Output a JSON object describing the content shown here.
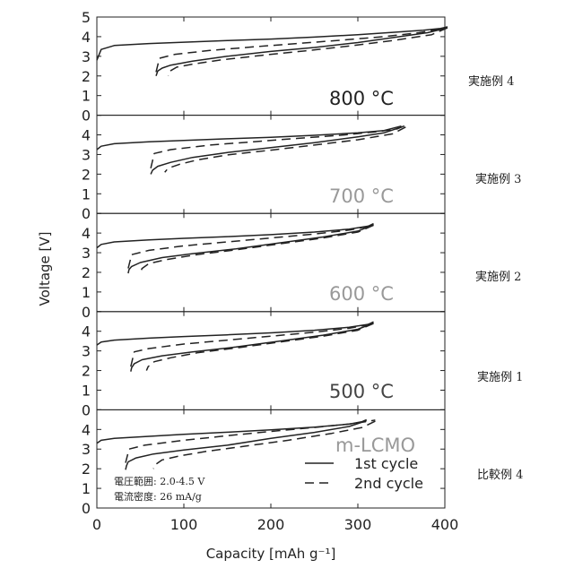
{
  "chart_data": {
    "type": "line",
    "xlabel": "Capacity [mAh g⁻¹]",
    "ylabel": "Voltage [V]",
    "xlim": [
      0,
      400
    ],
    "xticks": [
      "0",
      "100",
      "200",
      "300",
      "400"
    ],
    "ylim": [
      0,
      5
    ],
    "yticks": [
      "0",
      "1",
      "2",
      "3",
      "4",
      "5"
    ],
    "legend": {
      "position": "bottom-right of bottom panel",
      "entries": [
        {
          "label": "1st cycle",
          "style": "solid"
        },
        {
          "label": "2nd cycle",
          "style": "dashed"
        }
      ]
    },
    "conditions": [
      "電圧範囲: 2.0-4.5 V",
      "電流密度: 26 mA/g"
    ],
    "panels": [
      {
        "label": "800 °C",
        "label_color": "#222222",
        "side_label": "実施例 4",
        "series": [
          {
            "name": "1st cycle charge",
            "style": "solid",
            "x": [
              0,
              5,
              20,
              60,
              100,
              150,
              200,
              250,
              300,
              340,
              375,
              395,
              403
            ],
            "y": [
              2.8,
              3.35,
              3.55,
              3.65,
              3.72,
              3.8,
              3.88,
              3.98,
              4.1,
              4.22,
              4.33,
              4.42,
              4.5
            ]
          },
          {
            "name": "1st cycle discharge",
            "style": "solid",
            "x": [
              403,
              380,
              340,
              300,
              250,
              200,
              150,
              110,
              85,
              75,
              70,
              68
            ],
            "y": [
              4.45,
              4.2,
              3.95,
              3.7,
              3.45,
              3.25,
              3.0,
              2.75,
              2.55,
              2.4,
              2.25,
              2.0
            ]
          },
          {
            "name": "2nd cycle charge",
            "style": "dashed",
            "x": [
              68,
              72,
              90,
              130,
              180,
              230,
              280,
              330,
              370,
              395,
              403
            ],
            "y": [
              2.2,
              2.9,
              3.1,
              3.3,
              3.48,
              3.65,
              3.82,
              4.0,
              4.2,
              4.38,
              4.5
            ]
          },
          {
            "name": "2nd cycle discharge",
            "style": "dashed",
            "x": [
              403,
              385,
              340,
              290,
              240,
              190,
              140,
              110,
              92,
              84,
              82
            ],
            "y": [
              4.45,
              4.1,
              3.8,
              3.52,
              3.28,
              3.05,
              2.8,
              2.6,
              2.45,
              2.25,
              2.0
            ]
          }
        ]
      },
      {
        "label": "700 °C",
        "label_color": "#999999",
        "side_label": "実施例 3",
        "series": [
          {
            "name": "1st cycle charge",
            "style": "solid",
            "x": [
              0,
              5,
              20,
              60,
              100,
              150,
              200,
              250,
              300,
              330,
              350
            ],
            "y": [
              3.25,
              3.42,
              3.55,
              3.65,
              3.72,
              3.8,
              3.88,
              3.98,
              4.1,
              4.22,
              4.45
            ]
          },
          {
            "name": "1st cycle discharge",
            "style": "solid",
            "x": [
              350,
              330,
              300,
              250,
              200,
              150,
              110,
              85,
              70,
              64,
              62
            ],
            "y": [
              4.4,
              4.1,
              3.9,
              3.6,
              3.35,
              3.1,
              2.85,
              2.6,
              2.4,
              2.2,
              2.0
            ]
          },
          {
            "name": "2nd cycle charge",
            "style": "dashed",
            "x": [
              62,
              66,
              85,
              130,
              180,
              230,
              280,
              320,
              345,
              355
            ],
            "y": [
              2.3,
              3.05,
              3.25,
              3.48,
              3.65,
              3.82,
              3.98,
              4.15,
              4.3,
              4.48
            ]
          },
          {
            "name": "2nd cycle discharge",
            "style": "dashed",
            "x": [
              355,
              340,
              300,
              250,
              200,
              150,
              115,
              95,
              82,
              78
            ],
            "y": [
              4.4,
              4.05,
              3.75,
              3.48,
              3.22,
              2.98,
              2.72,
              2.5,
              2.3,
              2.1
            ]
          }
        ]
      },
      {
        "label": "600 °C",
        "label_color": "#999999",
        "side_label": "実施例 2",
        "series": [
          {
            "name": "1st cycle charge",
            "style": "solid",
            "x": [
              0,
              5,
              20,
              60,
              100,
              150,
              200,
              250,
              290,
              312,
              318
            ],
            "y": [
              3.25,
              3.42,
              3.55,
              3.65,
              3.73,
              3.82,
              3.92,
              4.05,
              4.2,
              4.35,
              4.48
            ]
          },
          {
            "name": "1st cycle discharge",
            "style": "solid",
            "x": [
              318,
              300,
              260,
              210,
              160,
              110,
              75,
              50,
              40,
              37,
              36
            ],
            "y": [
              4.42,
              4.1,
              3.8,
              3.5,
              3.2,
              2.95,
              2.75,
              2.5,
              2.3,
              2.15,
              1.95
            ]
          },
          {
            "name": "2nd cycle charge",
            "style": "dashed",
            "x": [
              36,
              40,
              60,
              100,
              150,
              200,
              250,
              290,
              310,
              318
            ],
            "y": [
              2.2,
              2.9,
              3.12,
              3.35,
              3.55,
              3.75,
              3.95,
              4.15,
              4.32,
              4.45
            ]
          },
          {
            "name": "2nd cycle discharge",
            "style": "dashed",
            "x": [
              318,
              300,
              260,
              210,
              160,
              115,
              80,
              60,
              52,
              50
            ],
            "y": [
              4.4,
              4.05,
              3.75,
              3.45,
              3.15,
              2.9,
              2.65,
              2.45,
              2.2,
              2.0
            ]
          }
        ]
      },
      {
        "label": "500 °C",
        "label_color": "#444444",
        "side_label": "実施例 1",
        "series": [
          {
            "name": "1st cycle charge",
            "style": "solid",
            "x": [
              0,
              5,
              20,
              60,
              100,
              150,
              200,
              250,
              290,
              312,
              318
            ],
            "y": [
              3.3,
              3.45,
              3.55,
              3.65,
              3.73,
              3.82,
              3.92,
              4.05,
              4.2,
              4.35,
              4.48
            ]
          },
          {
            "name": "1st cycle discharge",
            "style": "solid",
            "x": [
              318,
              300,
              260,
              210,
              160,
              110,
              75,
              52,
              43,
              40,
              39
            ],
            "y": [
              4.42,
              4.1,
              3.8,
              3.5,
              3.2,
              2.95,
              2.75,
              2.55,
              2.35,
              2.15,
              1.95
            ]
          },
          {
            "name": "2nd cycle charge",
            "style": "dashed",
            "x": [
              39,
              43,
              60,
              100,
              150,
              200,
              250,
              290,
              310,
              318
            ],
            "y": [
              2.2,
              2.95,
              3.12,
              3.35,
              3.55,
              3.75,
              3.95,
              4.15,
              4.32,
              4.45
            ]
          },
          {
            "name": "2nd cycle discharge",
            "style": "dashed",
            "x": [
              318,
              300,
              260,
              210,
              160,
              115,
              85,
              66,
              59,
              57
            ],
            "y": [
              4.4,
              4.05,
              3.75,
              3.45,
              3.15,
              2.9,
              2.65,
              2.45,
              2.2,
              2.0
            ]
          }
        ]
      },
      {
        "label": "m-LCMO",
        "label_color": "#999999",
        "side_label": "比較例 4",
        "series": [
          {
            "name": "1st cycle charge",
            "style": "solid",
            "x": [
              0,
              5,
              20,
              60,
              100,
              150,
              200,
              250,
              290,
              305,
              310
            ],
            "y": [
              3.3,
              3.45,
              3.55,
              3.65,
              3.75,
              3.86,
              3.98,
              4.12,
              4.27,
              4.4,
              4.5
            ]
          },
          {
            "name": "1st cycle discharge",
            "style": "solid",
            "x": [
              310,
              290,
              250,
              200,
              150,
              100,
              65,
              45,
              36,
              34,
              33
            ],
            "y": [
              4.45,
              4.15,
              3.85,
              3.55,
              3.2,
              2.95,
              2.75,
              2.55,
              2.35,
              2.15,
              1.95
            ]
          },
          {
            "name": "2nd cycle charge",
            "style": "dashed",
            "x": [
              33,
              37,
              55,
              100,
              150,
              200,
              250,
              290,
              310,
              320
            ],
            "y": [
              2.3,
              3.0,
              3.2,
              3.45,
              3.68,
              3.9,
              4.1,
              4.28,
              4.4,
              4.48
            ]
          },
          {
            "name": "2nd cycle discharge",
            "style": "dashed",
            "x": [
              320,
              305,
              270,
              220,
              170,
              125,
              95,
              75,
              67,
              65
            ],
            "y": [
              4.42,
              4.1,
              3.8,
              3.45,
              3.15,
              2.88,
              2.65,
              2.45,
              2.2,
              2.0
            ]
          }
        ]
      }
    ]
  }
}
